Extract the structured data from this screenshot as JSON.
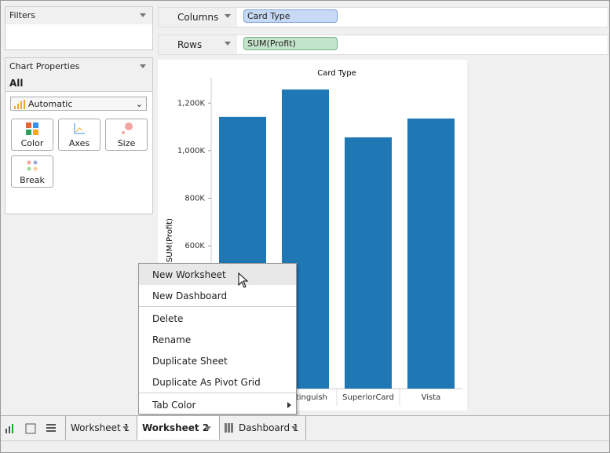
{
  "filters": {
    "title": "Filters"
  },
  "shelves": {
    "columns": {
      "label": "Columns",
      "pill": "Card Type"
    },
    "rows": {
      "label": "Rows",
      "pill": "SUM(Profit)"
    }
  },
  "chart_properties": {
    "title": "Chart Properties",
    "all": "All",
    "mark_type": "Automatic",
    "buttons": [
      "Color",
      "Axes",
      "Size",
      "Break"
    ]
  },
  "chart_data": {
    "type": "bar",
    "title": "Card Type",
    "y_label": "SUM(Profit)",
    "categories": [
      null,
      "Distinguish",
      "SuperiorCard",
      "Vista"
    ],
    "values": [
      1142000,
      1257000,
      1056000,
      1135000
    ],
    "color": "#1f77b4",
    "ylim": [
      0,
      1290000
    ],
    "yticks": [
      {
        "value": 600000,
        "label": "600K"
      },
      {
        "value": 800000,
        "label": "800K"
      },
      {
        "value": 1000000,
        "label": "1,000K"
      },
      {
        "value": 1200000,
        "label": "1,200K"
      }
    ]
  },
  "context_menu": {
    "items": [
      "New Worksheet",
      "New Dashboard",
      "Delete",
      "Rename",
      "Duplicate Sheet",
      "Duplicate As Pivot Grid",
      "Tab Color"
    ]
  },
  "tabs": [
    "Worksheet 1",
    "Worksheet 2",
    "Dashboard 1"
  ]
}
